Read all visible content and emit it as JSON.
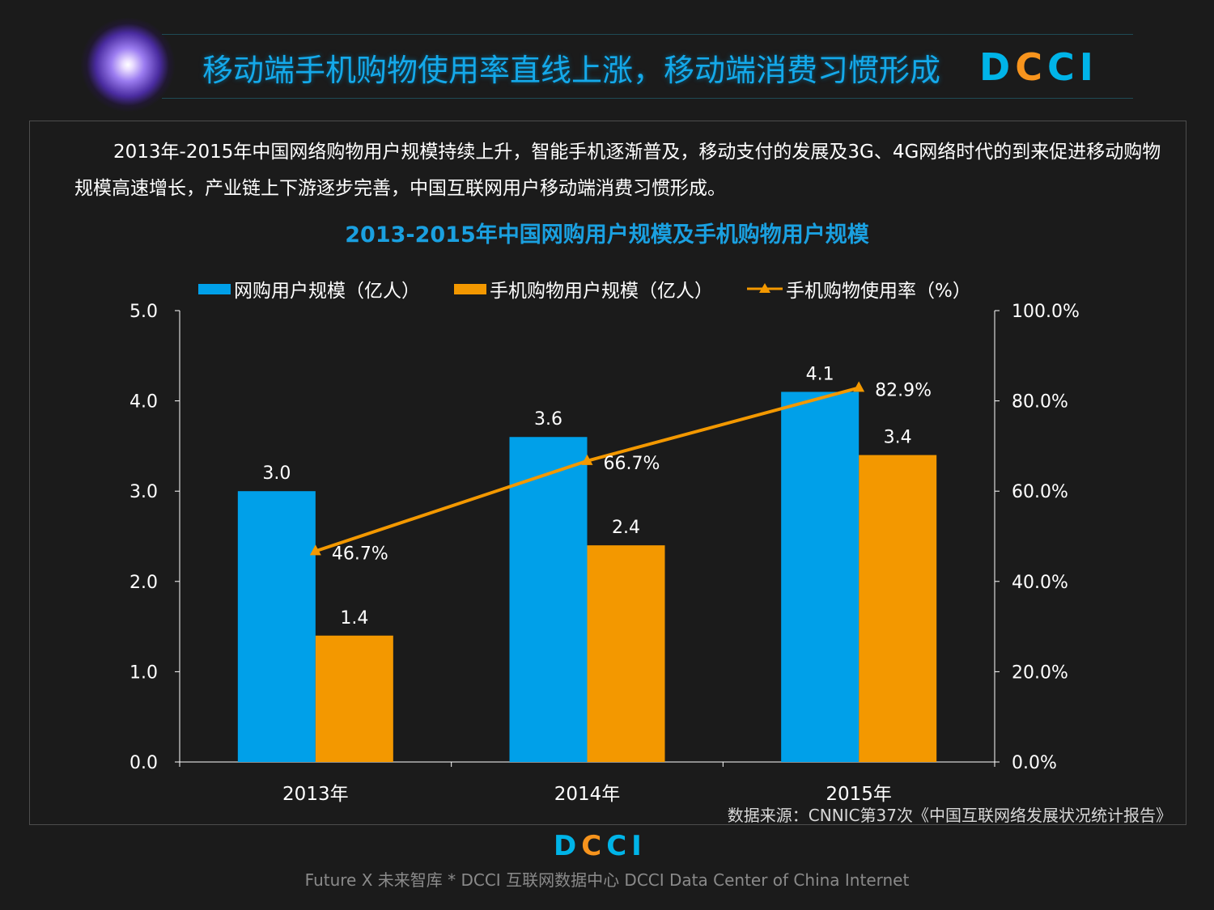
{
  "header": {
    "title": "移动端手机购物使用率直线上涨，移动端消费习惯形成",
    "logo": "DCCI",
    "logo_colors": [
      "#00b4e8",
      "#f7941d",
      "#00b4e8",
      "#00b4e8"
    ]
  },
  "intro": "2013年-2015年中国网络购物用户规模持续上升，智能手机逐渐普及，移动支付的发展及3G、4G网络时代的到来促进移动购物规模高速增长，产业链上下游逐步完善，中国互联网用户移动端消费习惯形成。",
  "chart_data": {
    "type": "bar+line",
    "title": "2013-2015年中国网购用户规模及手机购物用户规模",
    "categories": [
      "2013年",
      "2014年",
      "2015年"
    ],
    "series": [
      {
        "name": "网购用户规模（亿人）",
        "type": "bar",
        "axis": "left",
        "color": "#00a0e9",
        "values": [
          3.0,
          3.6,
          4.1
        ]
      },
      {
        "name": "手机购物用户规模（亿人）",
        "type": "bar",
        "axis": "left",
        "color": "#f39800",
        "values": [
          1.4,
          2.4,
          3.4
        ]
      },
      {
        "name": "手机购物使用率（%）",
        "type": "line",
        "axis": "right",
        "color": "#f39800",
        "marker": "triangle",
        "values": [
          46.7,
          66.7,
          82.9
        ]
      }
    ],
    "left_axis": {
      "ylim": [
        0,
        5
      ],
      "ticks": [
        "0.0",
        "1.0",
        "2.0",
        "3.0",
        "4.0",
        "5.0"
      ]
    },
    "right_axis": {
      "ylim": [
        0,
        100
      ],
      "ticks": [
        "0.0%",
        "20.0%",
        "40.0%",
        "60.0%",
        "80.0%",
        "100.0%"
      ]
    },
    "bar_labels": [
      [
        "3.0",
        "3.6",
        "4.1"
      ],
      [
        "1.4",
        "2.4",
        "3.4"
      ]
    ],
    "line_labels": [
      "46.7%",
      "66.7%",
      "82.9%"
    ],
    "legend": "top",
    "grid": false
  },
  "source": "数据来源：CNNIC第37次《中国互联网络发展状况统计报告》",
  "footer": {
    "logo": "DCCI",
    "text": "Future X 未来智库 * DCCI 互联网数据中心 DCCI Data Center of China Internet"
  }
}
